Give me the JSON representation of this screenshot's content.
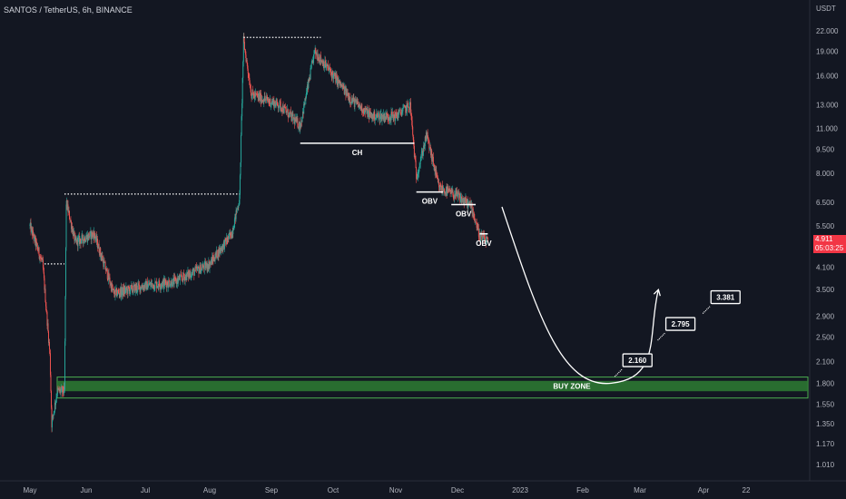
{
  "header": {
    "symbol_line": "SANTOS / TetherUS, 6h, BINANCE"
  },
  "colors": {
    "background": "#131722",
    "up": "#26a69a",
    "down": "#ef5350",
    "zone": "#2e7d32",
    "annotation": "#ffffff",
    "price_tag": "#f23645"
  },
  "last_price": {
    "value": "4.911",
    "countdown": "05:03:25"
  },
  "chart_data": {
    "type": "candlestick",
    "title": "",
    "currency_label": "USDT",
    "scale": "log",
    "ylim": [
      0.9,
      26
    ],
    "grid": false,
    "y_ticks": [
      "22.000",
      "19.000",
      "16.000",
      "13.000",
      "11.000",
      "9.500",
      "8.000",
      "6.500",
      "5.500",
      "4.100",
      "3.500",
      "2.900",
      "2.500",
      "2.100",
      "1.800",
      "1.550",
      "1.350",
      "1.170",
      "1.010"
    ],
    "x_ticks": [
      "May",
      "Jun",
      "Jul",
      "Aug",
      "Sep",
      "Oct",
      "Nov",
      "Dec",
      "2023",
      "Feb",
      "Mar",
      "Apr",
      "22"
    ],
    "price_path": [
      {
        "date": "May 1",
        "price": 5.5
      },
      {
        "date": "May 8",
        "price": 4.2
      },
      {
        "date": "May 12",
        "price": 2.2
      },
      {
        "date": "May 13",
        "price": 1.35
      },
      {
        "date": "May 16",
        "price": 1.7
      },
      {
        "date": "May 20",
        "price": 1.7
      },
      {
        "date": "May 21",
        "price": 6.5
      },
      {
        "date": "May 26",
        "price": 4.9
      },
      {
        "date": "Jun 5",
        "price": 5.2
      },
      {
        "date": "Jun 15",
        "price": 3.4
      },
      {
        "date": "Jul 1",
        "price": 3.6
      },
      {
        "date": "Jul 15",
        "price": 3.7
      },
      {
        "date": "Aug 1",
        "price": 4.2
      },
      {
        "date": "Aug 12",
        "price": 5.2
      },
      {
        "date": "Aug 16",
        "price": 6.7
      },
      {
        "date": "Aug 18",
        "price": 20.5
      },
      {
        "date": "Aug 22",
        "price": 14.0
      },
      {
        "date": "Sep 5",
        "price": 13.0
      },
      {
        "date": "Sep 15",
        "price": 11.2
      },
      {
        "date": "Sep 22",
        "price": 19.0
      },
      {
        "date": "Sep 28",
        "price": 17.0
      },
      {
        "date": "Oct 10",
        "price": 13.5
      },
      {
        "date": "Oct 20",
        "price": 12.0
      },
      {
        "date": "Nov 1",
        "price": 12.0
      },
      {
        "date": "Nov 8",
        "price": 13.0
      },
      {
        "date": "Nov 11",
        "price": 7.8
      },
      {
        "date": "Nov 16",
        "price": 10.5
      },
      {
        "date": "Nov 22",
        "price": 7.2
      },
      {
        "date": "Dec 1",
        "price": 6.8
      },
      {
        "date": "Dec 8",
        "price": 6.3
      },
      {
        "date": "Dec 12",
        "price": 5.1
      },
      {
        "date": "Dec 16",
        "price": 4.911
      }
    ],
    "levels": [
      {
        "label": "",
        "price": 4.2,
        "from": "May 9",
        "to": "May 20",
        "style": "dotted"
      },
      {
        "label": "",
        "price": 6.9,
        "from": "May 20",
        "to": "Aug 16",
        "style": "dotted"
      },
      {
        "label": "",
        "price": 21.0,
        "from": "Aug 18",
        "to": "Sep 25",
        "style": "dotted"
      },
      {
        "label": "CH",
        "price": 9.9,
        "from": "Sep 15",
        "to": "Nov 10",
        "style": "solid"
      },
      {
        "label": "OBV",
        "price": 7.0,
        "from": "Nov 11",
        "to": "Nov 24",
        "style": "solid"
      },
      {
        "label": "OBV",
        "price": 6.4,
        "from": "Nov 28",
        "to": "Dec 10",
        "style": "solid"
      },
      {
        "label": "OBV",
        "price": 5.2,
        "from": "Dec 12",
        "to": "Dec 16",
        "style": "solid"
      }
    ],
    "buy_zone": {
      "label": "BUY ZONE",
      "low": 1.62,
      "high": 1.88
    },
    "projection": {
      "from": {
        "date": "Dec 23",
        "price": 6.3
      },
      "bottom": {
        "date": "Feb 15",
        "price": 1.8
      },
      "to": {
        "date": "Mar 10",
        "price": 3.5
      }
    },
    "targets": [
      "2.160",
      "2.795",
      "3.381"
    ]
  }
}
